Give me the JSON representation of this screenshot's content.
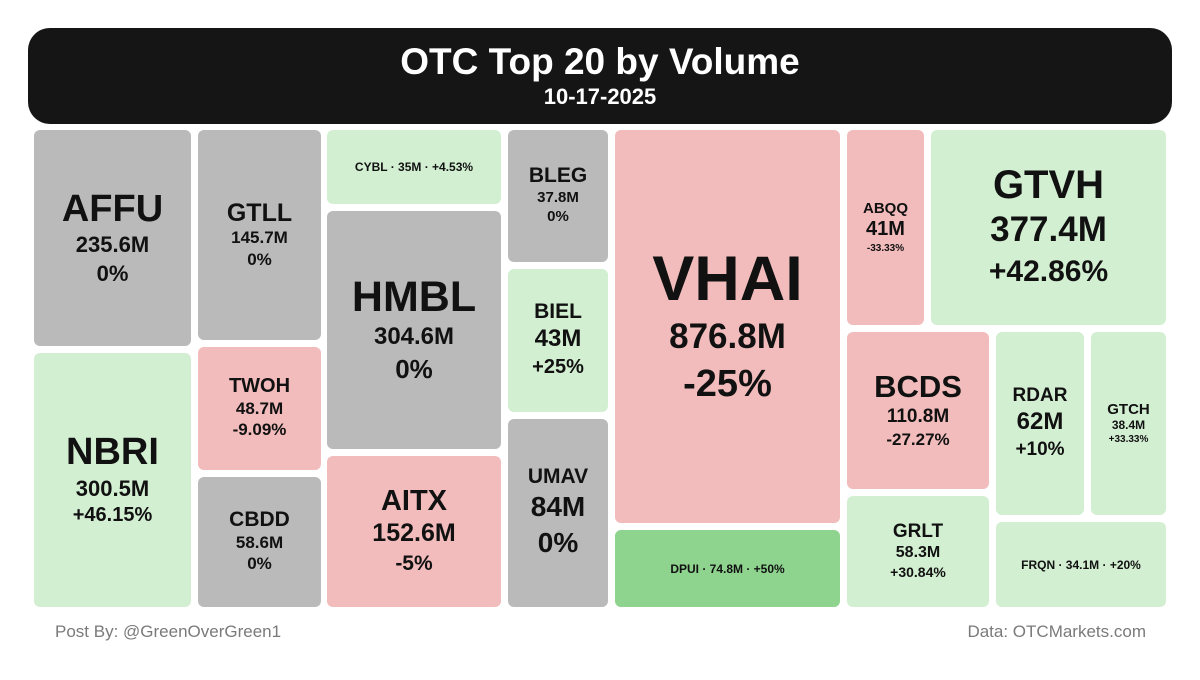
{
  "chart_data": {
    "type": "treemap",
    "title": "OTC Top 20 by Volume",
    "subtitle": "10-17-2025",
    "colors": {
      "flat": "#bababa",
      "up": "#d3efd2",
      "down": "#f2bcbc",
      "strong_up": "#8ed48e"
    },
    "items": [
      {
        "ticker": "AFFU",
        "volume": "235.6M",
        "change": "0%",
        "direction": "flat"
      },
      {
        "ticker": "NBRI",
        "volume": "300.5M",
        "change": "+46.15%",
        "direction": "up"
      },
      {
        "ticker": "GTLL",
        "volume": "145.7M",
        "change": "0%",
        "direction": "flat"
      },
      {
        "ticker": "TWOH",
        "volume": "48.7M",
        "change": "-9.09%",
        "direction": "down"
      },
      {
        "ticker": "CBDD",
        "volume": "58.6M",
        "change": "0%",
        "direction": "flat"
      },
      {
        "ticker": "CYBL",
        "volume": "35M",
        "change": "+4.53%",
        "direction": "up"
      },
      {
        "ticker": "HMBL",
        "volume": "304.6M",
        "change": "0%",
        "direction": "flat"
      },
      {
        "ticker": "AITX",
        "volume": "152.6M",
        "change": "-5%",
        "direction": "down"
      },
      {
        "ticker": "BLEG",
        "volume": "37.8M",
        "change": "0%",
        "direction": "flat"
      },
      {
        "ticker": "BIEL",
        "volume": "43M",
        "change": "+25%",
        "direction": "up"
      },
      {
        "ticker": "UMAV",
        "volume": "84M",
        "change": "0%",
        "direction": "flat"
      },
      {
        "ticker": "VHAI",
        "volume": "876.8M",
        "change": "-25%",
        "direction": "down"
      },
      {
        "ticker": "DPUI",
        "volume": "74.8M",
        "change": "+50%",
        "direction": "strong_up"
      },
      {
        "ticker": "ABQQ",
        "volume": "41M",
        "change": "-33.33%",
        "direction": "down"
      },
      {
        "ticker": "GTVH",
        "volume": "377.4M",
        "change": "+42.86%",
        "direction": "up"
      },
      {
        "ticker": "BCDS",
        "volume": "110.8M",
        "change": "-27.27%",
        "direction": "down"
      },
      {
        "ticker": "RDAR",
        "volume": "62M",
        "change": "+10%",
        "direction": "up"
      },
      {
        "ticker": "GTCH",
        "volume": "38.4M",
        "change": "+33.33%",
        "direction": "up"
      },
      {
        "ticker": "GRLT",
        "volume": "58.3M",
        "change": "+30.84%",
        "direction": "up"
      },
      {
        "ticker": "FRQN",
        "volume": "34.1M",
        "change": "+20%",
        "direction": "up"
      }
    ]
  },
  "footer": {
    "post_by": "Post By: @GreenOverGreen1",
    "source": "Data: OTCMarkets.com"
  }
}
